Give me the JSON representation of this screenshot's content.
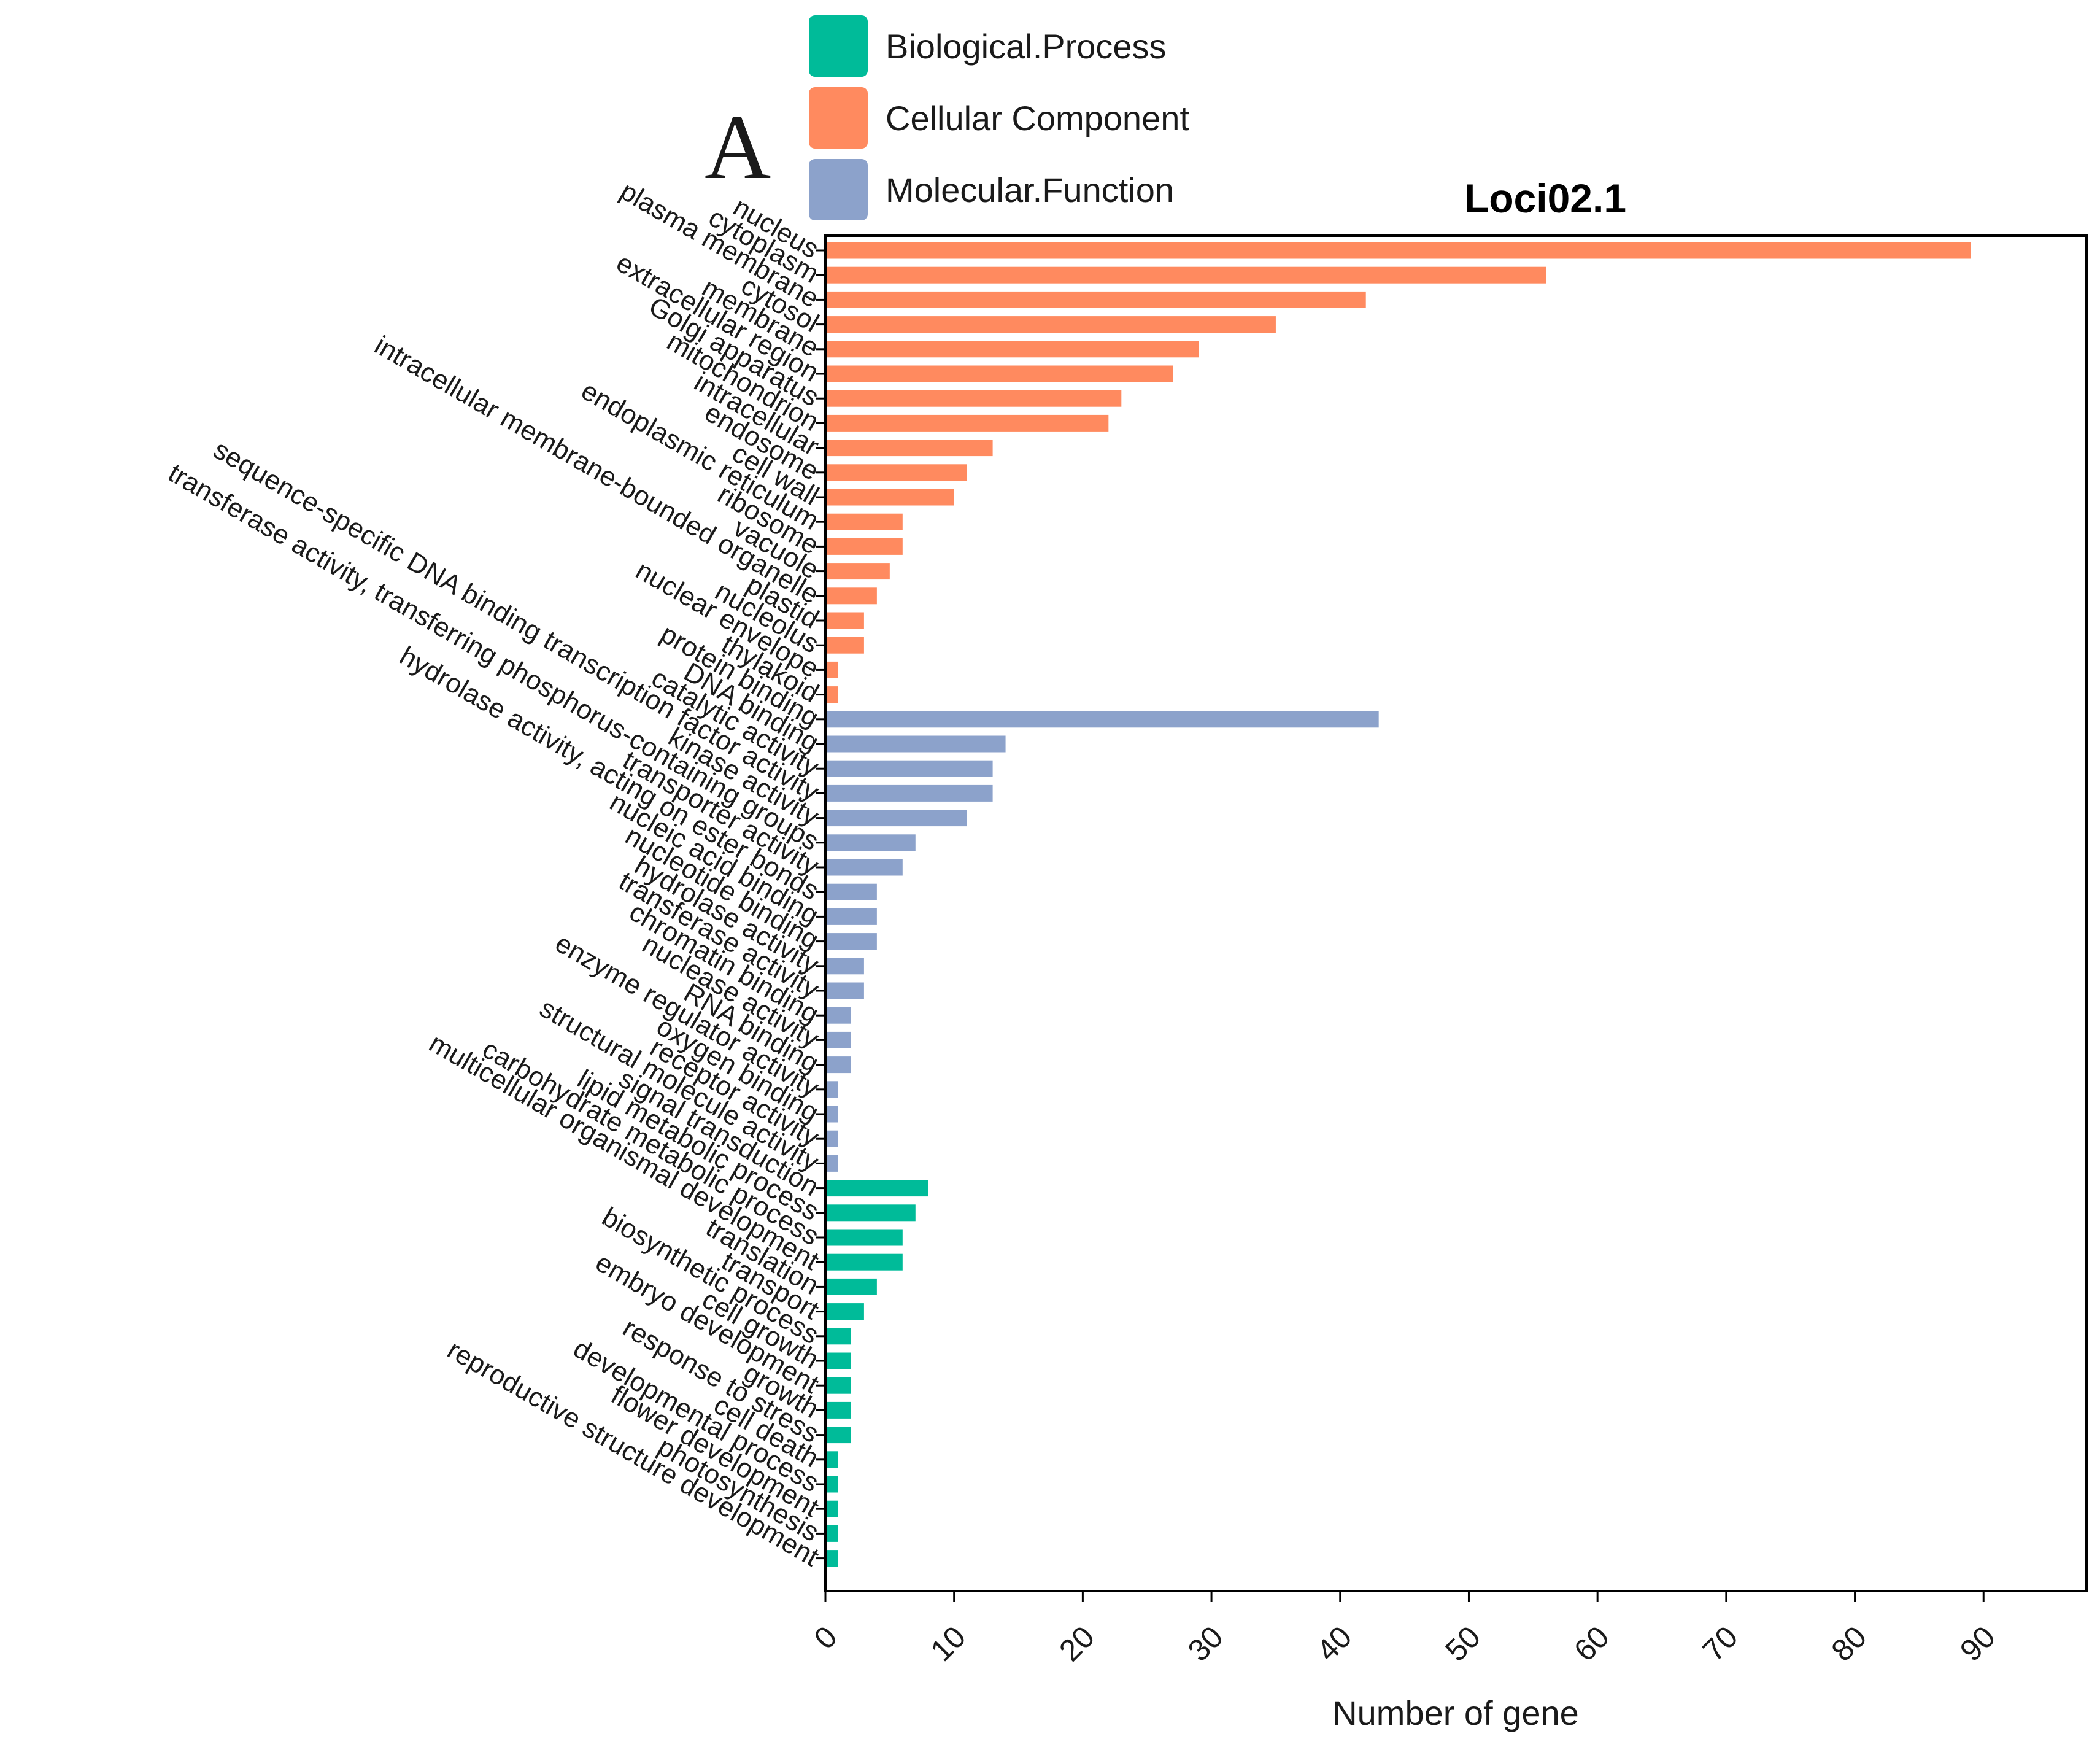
{
  "panel_letter": "A",
  "legend": [
    {
      "label": "Biological.Process",
      "color": "#00BB99"
    },
    {
      "label": "Cellular Component",
      "color": "#FF8A5F"
    },
    {
      "label": "Molecular.Function",
      "color": "#8CA2CB"
    }
  ],
  "colors": {
    "biological_process": "#00BB99",
    "cellular_component": "#FF8A5F",
    "molecular_function": "#8CA2CB",
    "axis": "#000000",
    "text": "#1a1a1a"
  },
  "chart_data": {
    "type": "bar",
    "orientation": "horizontal",
    "title": "Loci02.1",
    "xlabel": "Number of gene",
    "ylabel": "",
    "xlim": [
      0,
      98
    ],
    "xticks": [
      0,
      10,
      20,
      30,
      40,
      50,
      60,
      70,
      80,
      90
    ],
    "grid": false,
    "legend_position": "top-center",
    "categories": [
      "nucleus",
      "cytoplasm",
      "plasma membrane",
      "cytosol",
      "membrane",
      "extracellular region",
      "Golgi apparatus",
      "mitochondrion",
      "intracellular",
      "endosome",
      "cell wall",
      "endoplasmic reticulum",
      "ribosome",
      "vacuole",
      "intracellular membrane-bounded organelle",
      "plastid",
      "nucleolus",
      "nuclear envelope",
      "thylakoid",
      "protein binding",
      "DNA binding",
      "catalytic activity",
      "sequence-specific DNA binding transcription factor activity",
      "kinase activity",
      "transferase activity, transferring phosphorus-containing groups",
      "transporter activity",
      "hydrolase activity, acting on ester bonds",
      "nucleic acid binding",
      "nucleotide binding",
      "hydrolase activity",
      "transferase activity",
      "chromatin binding",
      "nuclease activity",
      "RNA binding",
      "enzyme regulator activity",
      "oxygen binding",
      "receptor activity",
      "structural molecule activity",
      "signal transduction",
      "lipid metabolic process",
      "carbohydrate metabolic process",
      "multicellular organismal development",
      "translation",
      "transport",
      "biosynthetic process",
      "cell growth",
      "embryo development",
      "growth",
      "response to stress",
      "cell death",
      "developmental process",
      "flower development",
      "photosynthesis",
      "reproductive structure development"
    ],
    "series": [
      {
        "name": "Cellular Component",
        "color": "#FF8A5F",
        "values": [
          89,
          56,
          42,
          35,
          29,
          27,
          23,
          22,
          13,
          11,
          10,
          6,
          6,
          5,
          4,
          3,
          3,
          1,
          1,
          null,
          null,
          null,
          null,
          null,
          null,
          null,
          null,
          null,
          null,
          null,
          null,
          null,
          null,
          null,
          null,
          null,
          null,
          null,
          null,
          null,
          null,
          null,
          null,
          null,
          null,
          null,
          null,
          null,
          null,
          null,
          null,
          null,
          null,
          null
        ]
      },
      {
        "name": "Molecular.Function",
        "color": "#8CA2CB",
        "values": [
          null,
          null,
          null,
          null,
          null,
          null,
          null,
          null,
          null,
          null,
          null,
          null,
          null,
          null,
          null,
          null,
          null,
          null,
          null,
          43,
          14,
          13,
          13,
          11,
          7,
          6,
          4,
          4,
          4,
          3,
          3,
          2,
          2,
          2,
          1,
          1,
          1,
          1,
          null,
          null,
          null,
          null,
          null,
          null,
          null,
          null,
          null,
          null,
          null,
          null,
          null,
          null,
          null,
          null
        ]
      },
      {
        "name": "Biological.Process",
        "color": "#00BB99",
        "values": [
          null,
          null,
          null,
          null,
          null,
          null,
          null,
          null,
          null,
          null,
          null,
          null,
          null,
          null,
          null,
          null,
          null,
          null,
          null,
          null,
          null,
          null,
          null,
          null,
          null,
          null,
          null,
          null,
          null,
          null,
          null,
          null,
          null,
          null,
          null,
          null,
          null,
          null,
          8,
          7,
          6,
          6,
          4,
          3,
          2,
          2,
          2,
          2,
          2,
          1,
          1,
          1,
          1,
          1
        ]
      }
    ]
  }
}
